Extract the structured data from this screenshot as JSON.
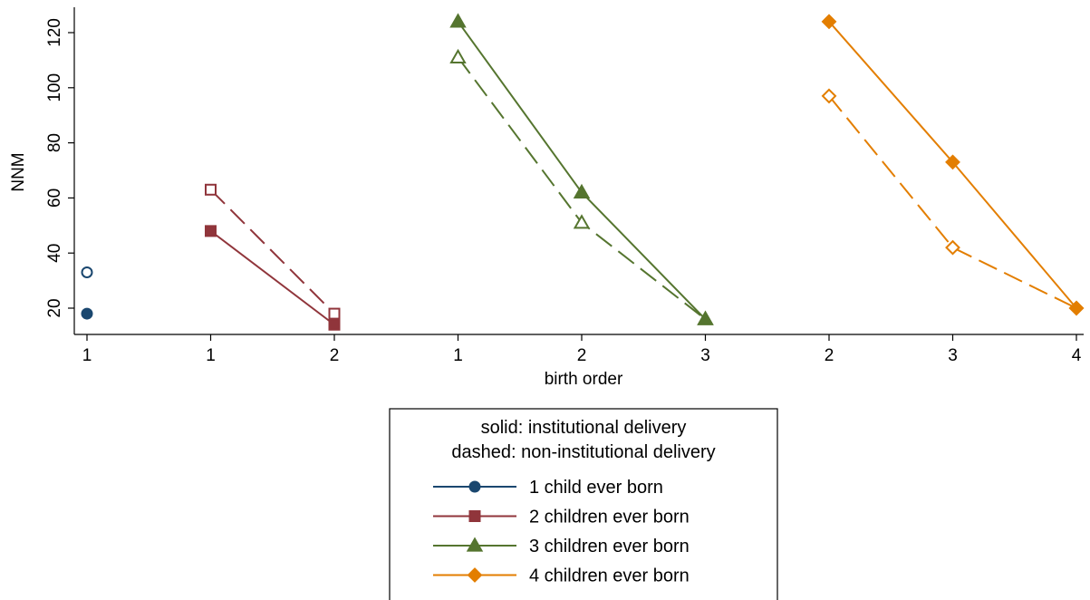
{
  "chart_data": {
    "type": "line",
    "xlabel": "birth order",
    "ylabel": "NNM",
    "ylim": [
      10,
      130
    ],
    "yticks": [
      20,
      40,
      60,
      80,
      100,
      120
    ],
    "grid": false,
    "x_categories": [
      "1",
      "1",
      "2",
      "1",
      "2",
      "3",
      "2",
      "3",
      "4"
    ],
    "legend": {
      "placement": "bottom",
      "title_lines": [
        "solid: institutional delivery",
        "dashed: non-institutional delivery"
      ]
    },
    "colors": {
      "one_child": "#1a476f",
      "two_children": "#90353b",
      "three_children": "#55752f",
      "four_children": "#e37e00"
    },
    "series": [
      {
        "name": "1 child ever born",
        "color": "#1a476f",
        "marker": "circle",
        "solid": {
          "x": [
            0
          ],
          "y": [
            18
          ]
        },
        "dashed": {
          "x": [
            0
          ],
          "y": [
            33
          ]
        }
      },
      {
        "name": "2 children ever born",
        "color": "#90353b",
        "marker": "square",
        "solid": {
          "x": [
            1,
            2
          ],
          "y": [
            48,
            14
          ]
        },
        "dashed": {
          "x": [
            1,
            2
          ],
          "y": [
            63,
            18
          ]
        }
      },
      {
        "name": "3 children ever born",
        "color": "#55752f",
        "marker": "triangle",
        "solid": {
          "x": [
            3,
            4,
            5
          ],
          "y": [
            124,
            62,
            16
          ]
        },
        "dashed": {
          "x": [
            3,
            4,
            5
          ],
          "y": [
            111,
            51,
            16
          ]
        }
      },
      {
        "name": "4 children ever born",
        "color": "#e37e00",
        "marker": "diamond",
        "solid": {
          "x": [
            6,
            7,
            8
          ],
          "y": [
            124,
            73,
            20
          ]
        },
        "dashed": {
          "x": [
            6,
            7,
            8
          ],
          "y": [
            97,
            42,
            20
          ]
        }
      }
    ]
  }
}
